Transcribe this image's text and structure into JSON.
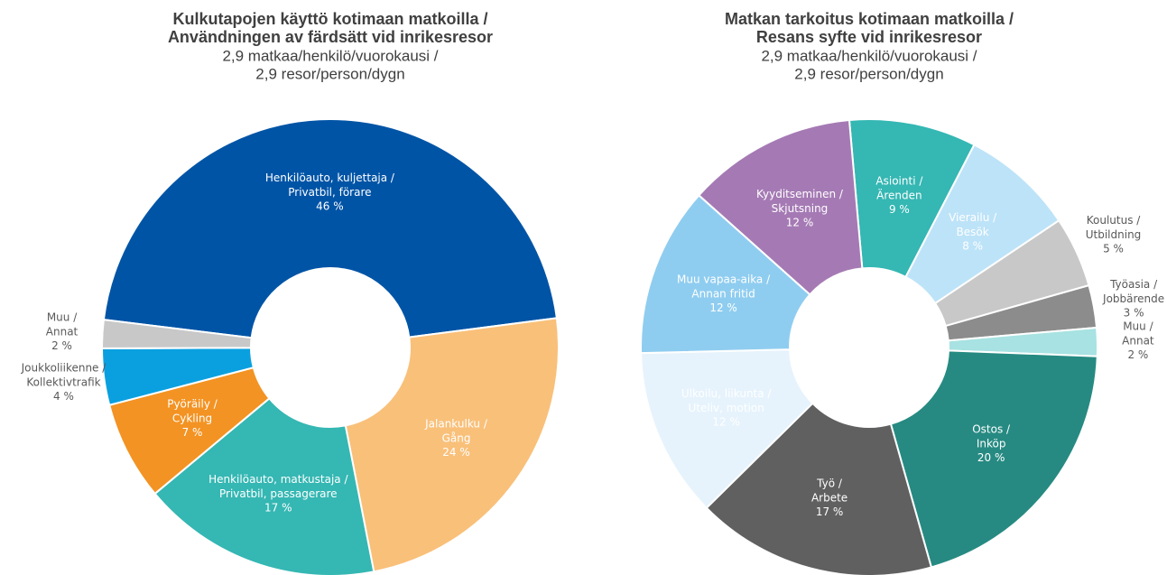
{
  "chart_data": [
    {
      "type": "donut",
      "title": [
        "Kulkutapojen käyttö kotimaan matkoilla /",
        "Användningen av färdsätt vid inrikesresor"
      ],
      "subtitle": [
        "2,9 matkaa/henkilö/vuorokausi /",
        "2,9 resor/person/dygn"
      ],
      "categories": [
        "Henkilöauto, kuljettaja / Privatbil, förare",
        "Jalankulku / Gång",
        "Henkilöauto, matkustaja / Privatbil, passagerare",
        "Pyöräily / Cykling",
        "Joukkoliikenne / Kollektivtrafik",
        "Muu / Annat"
      ],
      "values": [
        46,
        24,
        17,
        7,
        4,
        2
      ],
      "value_labels": [
        "46 %",
        "24 %",
        "17 %",
        "7 %",
        "4 %",
        "2 %"
      ],
      "colors": [
        "#0054a6",
        "#f9c07a",
        "#35b7b3",
        "#f39323",
        "#0aa0e0",
        "#c8c8c8"
      ]
    },
    {
      "type": "donut",
      "title": [
        "Matkan tarkoitus kotimaan matkoilla /",
        "Resans syfte vid inrikesresor"
      ],
      "subtitle": [
        "2,9 matkaa/henkilö/vuorokausi /",
        "2,9 resor/person/dygn"
      ],
      "categories": [
        "Asiointi / Ärenden",
        "Vierailu / Besök",
        "Koulutus / Utbildning",
        "Työasia / Jobbärende",
        "Muu / Annat",
        "Ostos / Inköp",
        "Työ / Arbete",
        "Ulkoilu, liikunta / Uteliv, motion",
        "Muu vapaa-aika / Annan fritid",
        "Kyyditseminen / Skjutsning"
      ],
      "values": [
        9,
        8,
        5,
        3,
        2,
        20,
        17,
        12,
        12,
        12
      ],
      "value_labels": [
        "9 %",
        "8 %",
        "5 %",
        "3 %",
        "2 %",
        "20 %",
        "17 %",
        "12 %",
        "12 %",
        "12 %"
      ],
      "colors": [
        "#35b7b3",
        "#bde3f8",
        "#c8c8c8",
        "#8c8c8c",
        "#a8e2e2",
        "#268a82",
        "#606060",
        "#e6f3fc",
        "#8fcdf0",
        "#a57ab4"
      ]
    }
  ]
}
